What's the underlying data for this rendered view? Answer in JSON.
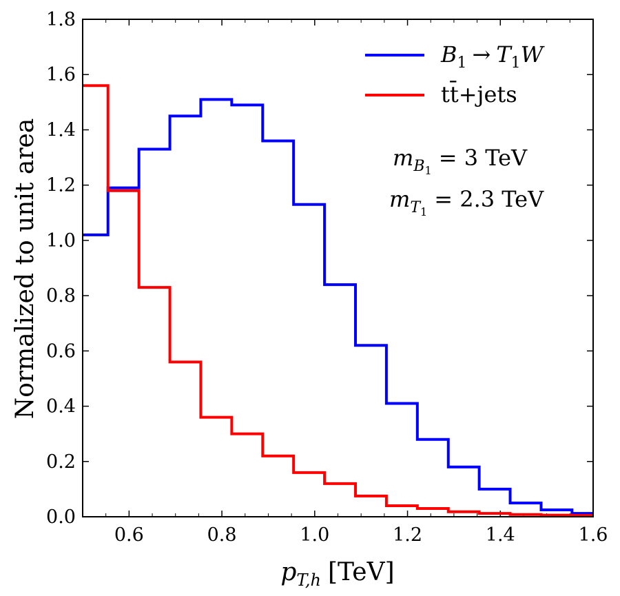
{
  "chart_data": {
    "type": "step-histogram",
    "xlabel": "p_T,h [TeV]",
    "xlabel_main": "p",
    "xlabel_sub": "T,h",
    "xlabel_unit": "[TeV]",
    "ylabel": "Normalized to unit area",
    "xlim": [
      0.5,
      1.6
    ],
    "ylim": [
      0.0,
      1.8
    ],
    "x_ticks": [
      0.6,
      0.8,
      1.0,
      1.2,
      1.4,
      1.6
    ],
    "x_tick_labels": [
      "0.6",
      "0.8",
      "1.0",
      "1.2",
      "1.4",
      "1.6"
    ],
    "y_ticks": [
      0.0,
      0.2,
      0.4,
      0.6,
      0.8,
      1.0,
      1.2,
      1.4,
      1.6,
      1.8
    ],
    "y_tick_labels": [
      "0.0",
      "0.2",
      "0.4",
      "0.6",
      "0.8",
      "1.0",
      "1.2",
      "1.4",
      "1.6",
      "1.8"
    ],
    "bin_edges": [
      0.5,
      0.5545,
      0.6212,
      0.6879,
      0.7545,
      0.8212,
      0.8879,
      0.9545,
      1.0212,
      1.0879,
      1.1545,
      1.2212,
      1.2879,
      1.3545,
      1.4212,
      1.4879,
      1.5545,
      1.6
    ],
    "series": [
      {
        "name": "B_1 → T_1 W",
        "color": "#0000ff",
        "values": [
          1.02,
          1.19,
          1.33,
          1.45,
          1.51,
          1.49,
          1.36,
          1.13,
          0.84,
          0.62,
          0.41,
          0.28,
          0.18,
          0.1,
          0.05,
          0.025,
          0.012
        ]
      },
      {
        "name": "tt̄+jets",
        "color": "#ff0000",
        "values": [
          1.56,
          1.18,
          0.83,
          0.56,
          0.36,
          0.3,
          0.22,
          0.16,
          0.12,
          0.075,
          0.04,
          0.03,
          0.018,
          0.012,
          0.008,
          0.006,
          0.005
        ]
      }
    ],
    "legend_location": "top-right",
    "legend": {
      "entry1": {
        "base": "B",
        "sub1": "1",
        "arrow": "→",
        "base2": "T",
        "sub2": "1",
        "tail": "W"
      },
      "entry2": {
        "text": "tt̄+jets"
      }
    },
    "annotations": {
      "mass_b": {
        "base": "m",
        "sub": "B",
        "subsub": "1",
        "value": "= 3 TeV"
      },
      "mass_t": {
        "base": "m",
        "sub": "T",
        "subsub": "1",
        "value": "= 2.3 TeV"
      }
    }
  }
}
